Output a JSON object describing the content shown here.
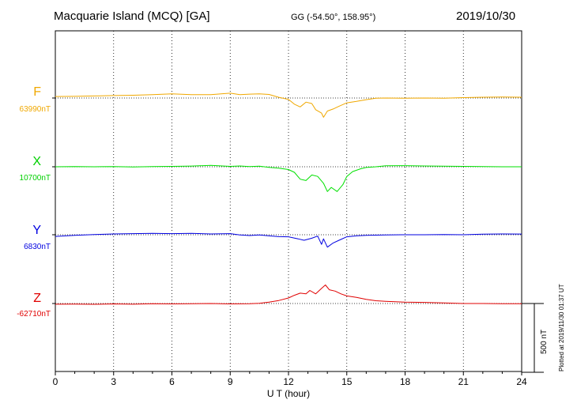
{
  "header": {
    "title": "Macquarie Island (MCQ)  [GA]",
    "coords": "GG (-54.50°, 158.95°)",
    "date": "2019/10/30"
  },
  "footer": {
    "plotted": "Plotted at 2019/11/30 01:37 UT",
    "scale": "500 nT"
  },
  "chart_data": {
    "type": "line",
    "xlabel": "U T (hour)",
    "xlim": [
      0,
      24
    ],
    "xticks": [
      "0",
      "3",
      "6",
      "9",
      "12",
      "15",
      "18",
      "21",
      "24"
    ],
    "scale_bar_nT": 500,
    "colors": {
      "F": "#f0a800",
      "X": "#00e000",
      "Y": "#0000e0",
      "Z": "#e00000"
    },
    "series": [
      {
        "name": "F",
        "baseline_label": "63990nT",
        "baseline": 63990,
        "points": [
          [
            0,
            64001
          ],
          [
            1,
            64002
          ],
          [
            2,
            64005
          ],
          [
            3,
            64008
          ],
          [
            4,
            64010
          ],
          [
            5,
            64015
          ],
          [
            6,
            64020
          ],
          [
            7,
            64014
          ],
          [
            8,
            64015
          ],
          [
            9,
            64025
          ],
          [
            9.5,
            64015
          ],
          [
            10,
            64018
          ],
          [
            10.5,
            64020
          ],
          [
            11,
            64016
          ],
          [
            11.5,
            63995
          ],
          [
            12,
            63980
          ],
          [
            12.3,
            63945
          ],
          [
            12.6,
            63925
          ],
          [
            12.9,
            63960
          ],
          [
            13.2,
            63950
          ],
          [
            13.4,
            63905
          ],
          [
            13.7,
            63880
          ],
          [
            13.8,
            63850
          ],
          [
            14,
            63895
          ],
          [
            14.3,
            63910
          ],
          [
            14.6,
            63930
          ],
          [
            15,
            63955
          ],
          [
            15.5,
            63965
          ],
          [
            16,
            63978
          ],
          [
            16.5,
            63988
          ],
          [
            17,
            63990
          ],
          [
            18,
            63988
          ],
          [
            19,
            63990
          ],
          [
            20,
            63988
          ],
          [
            21,
            63993
          ],
          [
            22,
            63996
          ],
          [
            23,
            63997
          ],
          [
            24,
            63996
          ]
        ]
      },
      {
        "name": "X",
        "baseline_label": "10700nT",
        "baseline": 10700,
        "points": [
          [
            0,
            10700
          ],
          [
            1,
            10702
          ],
          [
            2,
            10700
          ],
          [
            3,
            10702
          ],
          [
            4,
            10699
          ],
          [
            5,
            10701
          ],
          [
            6,
            10703
          ],
          [
            7,
            10705
          ],
          [
            8,
            10710
          ],
          [
            9,
            10703
          ],
          [
            9.5,
            10706
          ],
          [
            10,
            10702
          ],
          [
            10.5,
            10704
          ],
          [
            11,
            10696
          ],
          [
            11.5,
            10690
          ],
          [
            12,
            10680
          ],
          [
            12.3,
            10660
          ],
          [
            12.6,
            10610
          ],
          [
            12.9,
            10600
          ],
          [
            13.2,
            10640
          ],
          [
            13.5,
            10630
          ],
          [
            13.8,
            10580
          ],
          [
            14,
            10520
          ],
          [
            14.2,
            10550
          ],
          [
            14.5,
            10520
          ],
          [
            14.8,
            10570
          ],
          [
            15,
            10630
          ],
          [
            15.3,
            10665
          ],
          [
            15.7,
            10685
          ],
          [
            16,
            10695
          ],
          [
            16.5,
            10700
          ],
          [
            17,
            10707
          ],
          [
            18,
            10708
          ],
          [
            19,
            10706
          ],
          [
            20,
            10704
          ],
          [
            21,
            10703
          ],
          [
            22,
            10702
          ],
          [
            23,
            10700
          ],
          [
            24,
            10700
          ]
        ]
      },
      {
        "name": "Y",
        "baseline_label": "6830nT",
        "baseline": 6830,
        "points": [
          [
            0,
            6818
          ],
          [
            1,
            6826
          ],
          [
            2,
            6832
          ],
          [
            3,
            6836
          ],
          [
            4,
            6838
          ],
          [
            5,
            6840
          ],
          [
            6,
            6838
          ],
          [
            7,
            6840
          ],
          [
            8,
            6836
          ],
          [
            9,
            6838
          ],
          [
            9.5,
            6828
          ],
          [
            10,
            6824
          ],
          [
            10.5,
            6828
          ],
          [
            11,
            6822
          ],
          [
            11.5,
            6816
          ],
          [
            12,
            6815
          ],
          [
            12.5,
            6800
          ],
          [
            12.8,
            6790
          ],
          [
            13.2,
            6805
          ],
          [
            13.5,
            6820
          ],
          [
            13.7,
            6760
          ],
          [
            13.8,
            6800
          ],
          [
            14,
            6740
          ],
          [
            14.3,
            6770
          ],
          [
            14.6,
            6790
          ],
          [
            15,
            6815
          ],
          [
            15.5,
            6822
          ],
          [
            16,
            6826
          ],
          [
            17,
            6828
          ],
          [
            18,
            6830
          ],
          [
            19,
            6830
          ],
          [
            20,
            6832
          ],
          [
            21,
            6830
          ],
          [
            22,
            6834
          ],
          [
            23,
            6836
          ],
          [
            24,
            6835
          ]
        ]
      },
      {
        "name": "Z",
        "baseline_label": "-62710nT",
        "baseline": -62710,
        "points": [
          [
            0,
            -62715
          ],
          [
            1,
            -62714
          ],
          [
            2,
            -62716
          ],
          [
            3,
            -62713
          ],
          [
            4,
            -62715
          ],
          [
            5,
            -62712
          ],
          [
            6,
            -62713
          ],
          [
            7,
            -62712
          ],
          [
            8,
            -62710
          ],
          [
            9,
            -62713
          ],
          [
            10,
            -62711
          ],
          [
            10.5,
            -62708
          ],
          [
            11,
            -62700
          ],
          [
            11.5,
            -62688
          ],
          [
            12,
            -62670
          ],
          [
            12.3,
            -62650
          ],
          [
            12.6,
            -62635
          ],
          [
            12.9,
            -62640
          ],
          [
            13.1,
            -62615
          ],
          [
            13.4,
            -62640
          ],
          [
            13.7,
            -62600
          ],
          [
            13.9,
            -62575
          ],
          [
            14.1,
            -62610
          ],
          [
            14.4,
            -62620
          ],
          [
            14.7,
            -62640
          ],
          [
            15,
            -62655
          ],
          [
            15.5,
            -62665
          ],
          [
            16,
            -62680
          ],
          [
            16.5,
            -62690
          ],
          [
            17,
            -62694
          ],
          [
            18,
            -62700
          ],
          [
            19,
            -62702
          ],
          [
            20,
            -62706
          ],
          [
            21,
            -62710
          ],
          [
            22,
            -62710
          ],
          [
            23,
            -62712
          ],
          [
            24,
            -62712
          ]
        ]
      }
    ]
  }
}
